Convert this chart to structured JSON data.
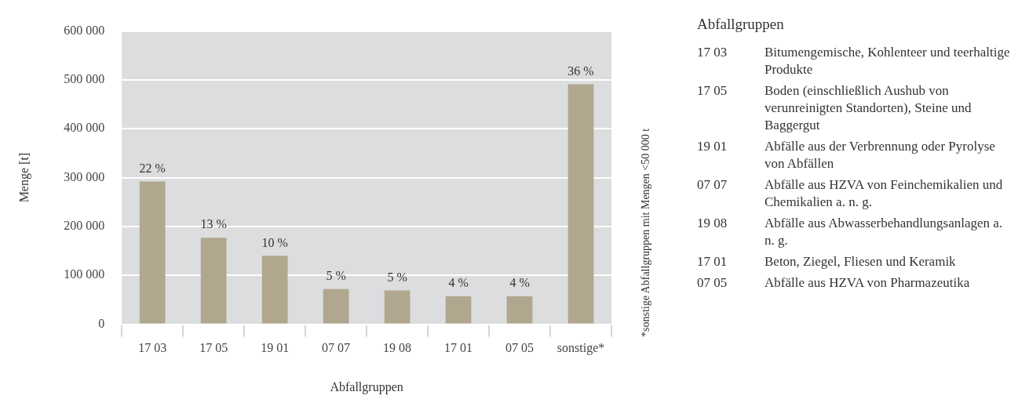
{
  "chart_data": {
    "type": "bar",
    "xlabel": "Abfallgruppen",
    "ylabel": "Menge [t]",
    "categories": [
      "17 03",
      "17 05",
      "19 01",
      "07 07",
      "19 08",
      "17 01",
      "07 05",
      "sonstige*"
    ],
    "values": [
      292000,
      177000,
      140000,
      72000,
      69000,
      57000,
      57000,
      491000
    ],
    "color": "#b0a78e",
    "ylim": [
      0,
      600000
    ],
    "yticks": [
      {
        "value": 0,
        "label": "0"
      },
      {
        "value": 100000,
        "label": "100 000"
      },
      {
        "value": 200000,
        "label": "200 000"
      },
      {
        "value": 300000,
        "label": "300 000"
      },
      {
        "value": 400000,
        "label": "400 000"
      },
      {
        "value": 500000,
        "label": "500 000"
      },
      {
        "value": 600000,
        "label": "600 000"
      }
    ],
    "grid": "y",
    "annotations": [
      "*sonstige Abfallgruppen mit Mengen <50 000 t",
      "Abfallgruppen",
      "Bitumengemische, Kohlenteer und teerhaltige Produkte",
      "Boden (einschließlich Aushub von verunreinigten Standorten), Steine und Baggergut",
      "Abfälle aus der Verbrennung oder Pyrolyse von Abfällen",
      "Abfälle aus HZVA von Feinchemikalien und Chemikalien a. n. g.",
      "Abfälle aus Abwasserbehandlungsanlagen a. n. g.",
      "Beton, Ziegel, Fliesen und Keramik",
      "Abfälle aus HZVA von Pharmazeutika",
      {
        "text": "22 %",
        "x": "17 03",
        "y": 292000
      },
      {
        "text": "13 %",
        "x": "17 05",
        "y": 177000
      },
      {
        "text": "10 %",
        "x": "19 01",
        "y": 140000
      },
      {
        "text": "5 %",
        "x": "07 07",
        "y": 72000
      },
      {
        "text": "5 %",
        "x": "19 08",
        "y": 69000
      },
      {
        "text": "4 %",
        "x": "17 01",
        "y": 57000
      },
      {
        "text": "4 %",
        "x": "07 05",
        "y": 57000
      },
      {
        "text": "36 %",
        "x": "sonstige*",
        "y": 491000
      }
    ]
  }
}
